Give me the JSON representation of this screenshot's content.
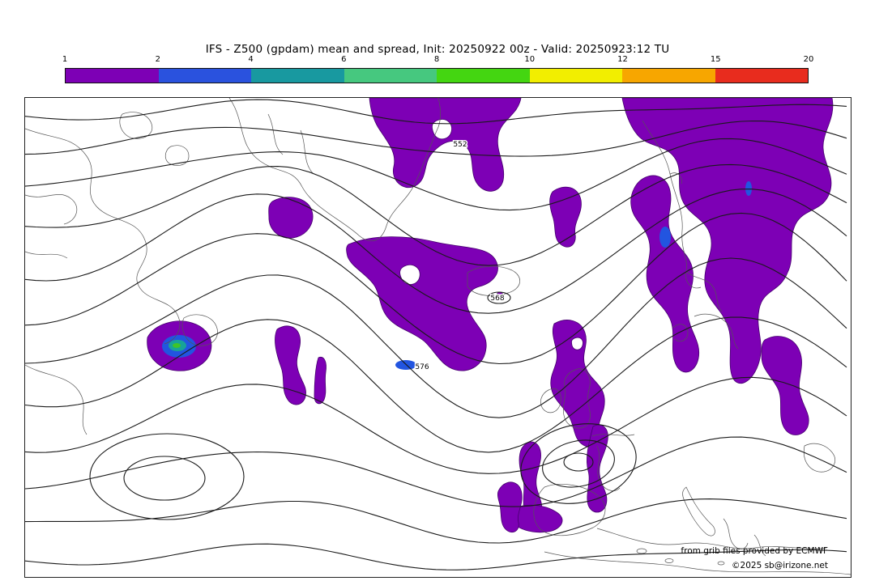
{
  "title": "IFS - Z500 (gpdam) mean and spread, Init: 20250922 00z - Valid: 20250923:12 TU",
  "colorbar": {
    "ticks": [
      "1",
      "2",
      "4",
      "6",
      "8",
      "10",
      "12",
      "15",
      "20"
    ],
    "colors": [
      "#7d00b5",
      "#2a52de",
      "#1899a0",
      "#46c87f",
      "#44d611",
      "#f2ee00",
      "#f7a600",
      "#e82c1e"
    ]
  },
  "map": {
    "spread_fill": "#7d00b5",
    "spread_outline": "#46006e",
    "core_colors": {
      "blue": "#2255e0",
      "teal": "#17a398",
      "green": "#3ec528"
    },
    "contour_color": "#1a1a1a",
    "coast_color": "#555555",
    "contour_labels": [
      "552",
      "568",
      "576"
    ],
    "attribution_line1": "from grib files provided by ECMWF",
    "attribution_line2": "©2025 sb@irizone.net"
  }
}
